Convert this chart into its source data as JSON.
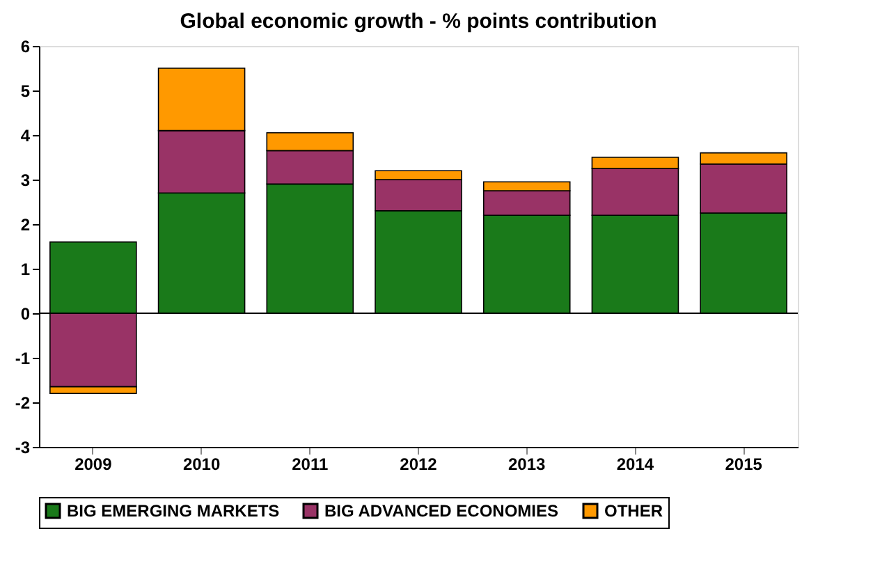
{
  "chart_data": {
    "type": "bar",
    "title": "Global economic growth - % points contribution",
    "categories": [
      "2009",
      "2010",
      "2011",
      "2012",
      "2013",
      "2014",
      "2015"
    ],
    "stacked": true,
    "series": [
      {
        "name": "BIG EMERGING MARKETS",
        "color": "#1a7a1a",
        "values": [
          1.6,
          2.7,
          2.9,
          2.3,
          2.2,
          2.2,
          2.25
        ]
      },
      {
        "name": "BIG ADVANCED ECONOMIES",
        "color": "#993366",
        "values": [
          -1.65,
          1.4,
          0.75,
          0.7,
          0.55,
          1.05,
          1.1
        ]
      },
      {
        "name": "OTHER",
        "color": "#ff9900",
        "values": [
          -0.15,
          1.4,
          0.4,
          0.2,
          0.2,
          0.25,
          0.25
        ]
      }
    ],
    "ylim": [
      -3,
      6
    ],
    "yticks": [
      -3,
      -2,
      -1,
      0,
      1,
      2,
      3,
      4,
      5,
      6
    ],
    "grid": false,
    "legend": "bottom",
    "ref_lines": [
      {
        "axis": "y",
        "value": 0
      }
    ]
  }
}
